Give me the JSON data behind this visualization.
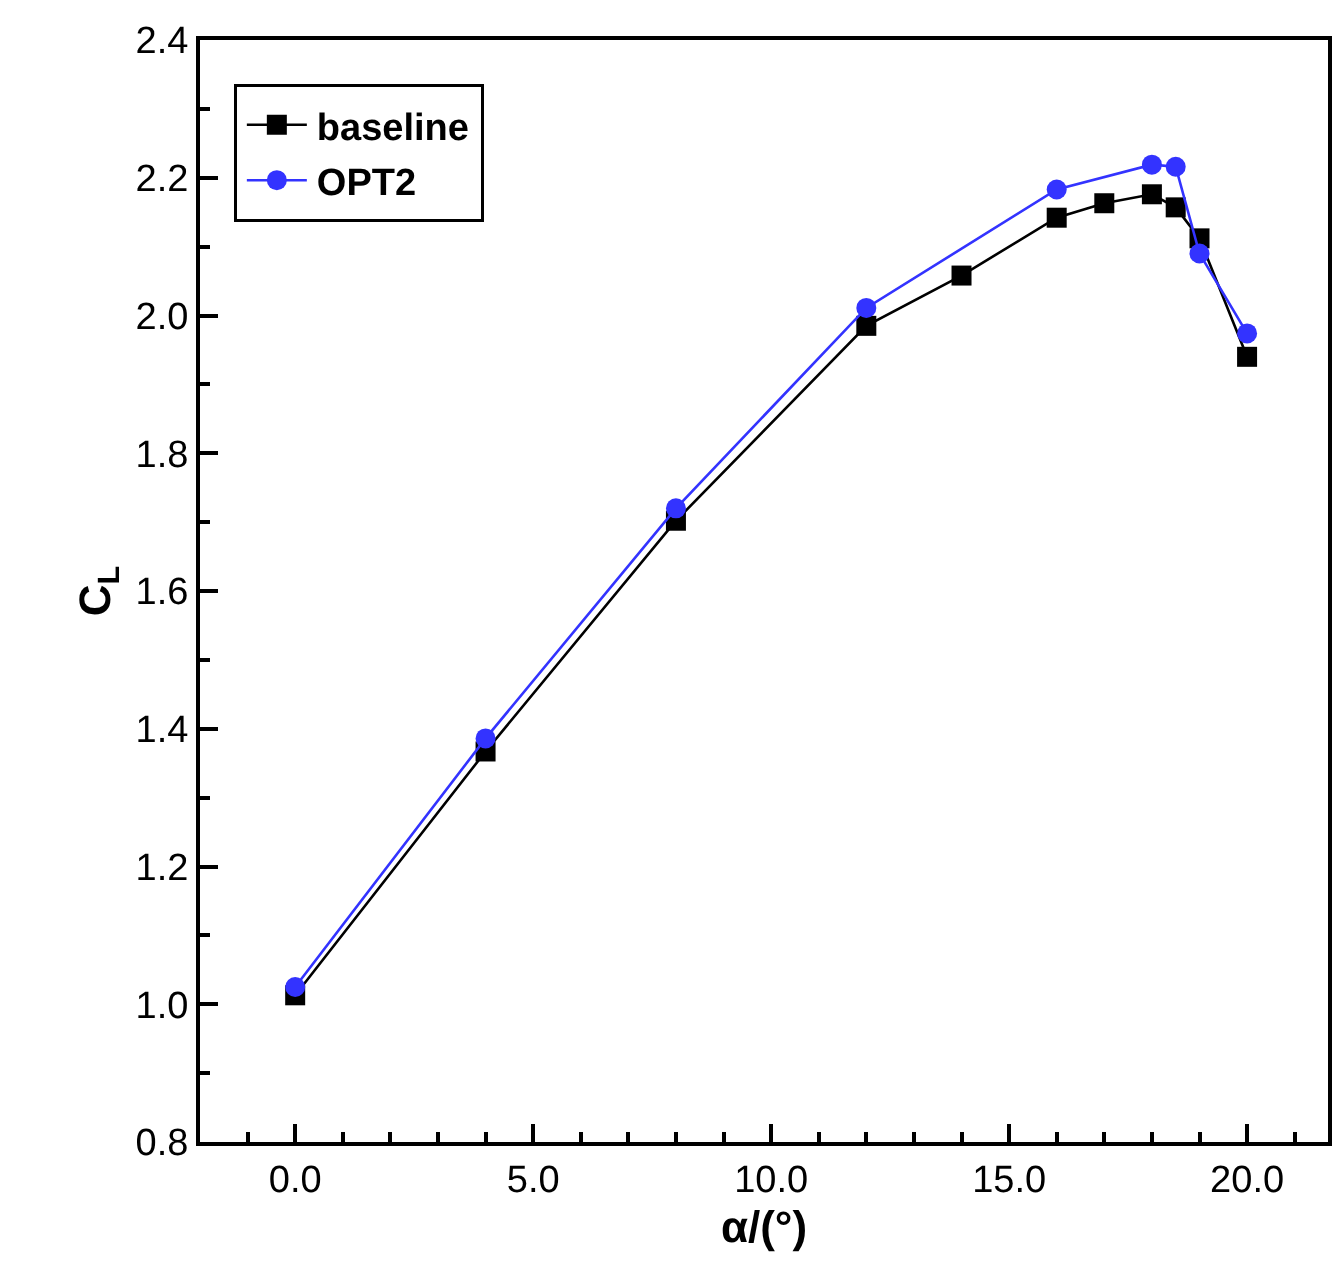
{
  "chart_data": {
    "type": "line",
    "xlabel": "α/(°)",
    "ylabel": "C$_{L}$",
    "xlim": [
      -2,
      21.7
    ],
    "ylim": [
      0.8,
      2.4
    ],
    "xticks": [
      {
        "value": 0,
        "label": "0.0"
      },
      {
        "value": 5,
        "label": "5.0"
      },
      {
        "value": 10,
        "label": "10.0"
      },
      {
        "value": 15,
        "label": "15.0"
      },
      {
        "value": 20,
        "label": "20.0"
      }
    ],
    "yticks": [
      0.8,
      {
        "value": 1,
        "label": "1.0"
      },
      1.2,
      1.4,
      1.6,
      1.8,
      {
        "value": 2,
        "label": "2.0"
      },
      2.2,
      2.4
    ],
    "grid": false,
    "legend": "top left",
    "line_style": "solid",
    "series": [
      {
        "name": "baseline",
        "color": "#000000",
        "marker": "square",
        "x": [
          0,
          4,
          8,
          12,
          14,
          16,
          17,
          18,
          18.5,
          19,
          20
        ],
        "values": [
          1.013,
          1.367,
          1.702,
          1.985,
          2.058,
          2.142,
          2.163,
          2.176,
          2.157,
          2.112,
          1.94
        ]
      },
      {
        "name": "OPT2",
        "color": "#3333ff",
        "marker": "circle",
        "x": [
          0,
          4,
          8,
          12,
          16,
          18,
          18.5,
          19,
          20
        ],
        "values": [
          1.025,
          1.386,
          1.72,
          2.011,
          2.183,
          2.219,
          2.216,
          2.09,
          1.974
        ]
      }
    ]
  }
}
